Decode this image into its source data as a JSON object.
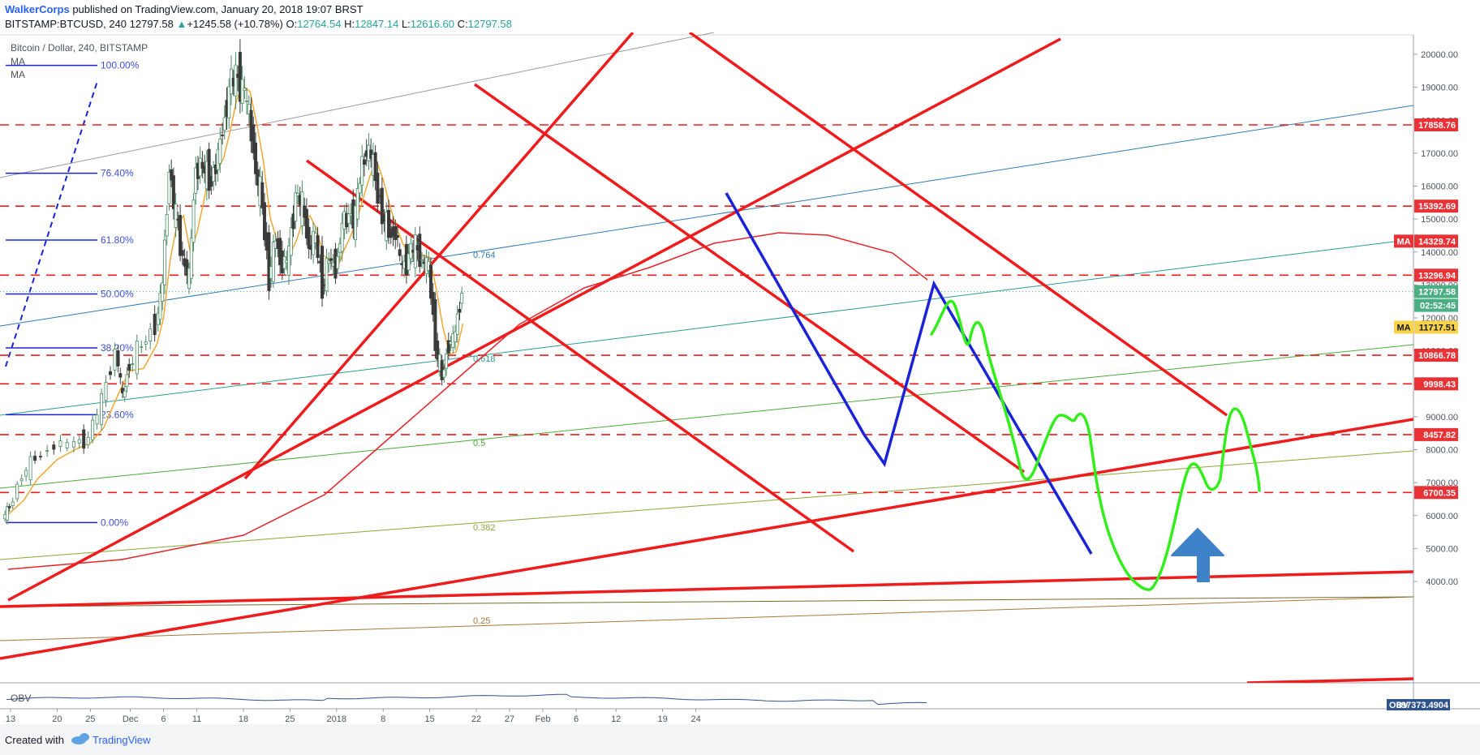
{
  "header": {
    "author": "WalkerCorps",
    "published": " published on TradingView.com, January 20, 2018 19:07 BRST",
    "symbol_line_prefix": "BITSTAMP:BTCUSD, 240  12797.58 ",
    "change_arrow": "▲",
    "change": "+1245.58 (+10.78%)",
    "o_label": " O:",
    "o_value": "12764.54",
    "h_label": " H:",
    "h_value": "12847.14",
    "l_label": " L:",
    "l_value": "12616.60",
    "c_label": " C:",
    "c_value": "12797.58"
  },
  "legend": {
    "title": "Bitcoin / Dollar, 240, BITSTAMP",
    "ma1": "MA",
    "ma2": "MA",
    "obv": "OBV"
  },
  "footer": {
    "created_with": "Created with",
    "brand": "TradingView"
  },
  "colors": {
    "red_line": "#ee1c1c",
    "blue_line": "#1a24d6",
    "green_line": "#33ee1c",
    "ma_orange": "#f0a830",
    "ma_red": "#e8242a",
    "candle_up": "#4a8c64",
    "candle_down": "#3a3a3a",
    "arrow": "#3d82c8",
    "badge_red": "#e83236",
    "badge_green": "#4caf84",
    "badge_yellow": "#f9d34a",
    "obv_badge": "#30548c"
  },
  "chart_data": {
    "type": "candlestick",
    "symbol": "BITSTAMP:BTCUSD",
    "interval": "240",
    "ylim": [
      3700,
      20700
    ],
    "y_ticks": [
      4000,
      5000,
      6000,
      7000,
      8000,
      9000,
      10000,
      11000,
      12000,
      13000,
      14000,
      15000,
      16000,
      17000,
      18000,
      19000,
      20000
    ],
    "y_tick_labels": [
      "4000.00",
      "5000.00",
      "6000.00",
      "7000.00",
      "8000.00",
      "9000.00",
      "10000.00",
      "11000.00",
      "12000.00",
      "13000.00",
      "14000.00",
      "15000.00",
      "16000.00",
      "17000.00",
      "18000.00",
      "19000.00",
      "20000.00"
    ],
    "x_ticks": [
      "13",
      "20",
      "25",
      "Dec",
      "6",
      "11",
      "18",
      "25",
      "2018",
      "8",
      "15",
      "22",
      "27",
      "Feb",
      "6",
      "12",
      "19",
      "24"
    ],
    "x_tick_dates": [
      "2017-11-13",
      "2017-11-20",
      "2017-11-25",
      "2017-12-01",
      "2017-12-06",
      "2017-12-11",
      "2017-12-18",
      "2017-12-25",
      "2018-01-01",
      "2018-01-08",
      "2018-01-15",
      "2018-01-22",
      "2018-01-27",
      "2018-02-01",
      "2018-02-06",
      "2018-02-12",
      "2018-02-19",
      "2018-02-24"
    ],
    "price_path": [
      [
        "2017-11-12",
        5900
      ],
      [
        "2017-11-13",
        6300
      ],
      [
        "2017-11-15",
        7200
      ],
      [
        "2017-11-17",
        7800
      ],
      [
        "2017-11-20",
        8100
      ],
      [
        "2017-11-23",
        8200
      ],
      [
        "2017-11-25",
        8300
      ],
      [
        "2017-11-27",
        9500
      ],
      [
        "2017-11-29",
        11000
      ],
      [
        "2017-11-30",
        9600
      ],
      [
        "2017-12-01",
        10600
      ],
      [
        "2017-12-03",
        11200
      ],
      [
        "2017-12-05",
        11800
      ],
      [
        "2017-12-06",
        13000
      ],
      [
        "2017-12-07",
        16500
      ],
      [
        "2017-12-08",
        15000
      ],
      [
        "2017-12-09",
        13800
      ],
      [
        "2017-12-10",
        13200
      ],
      [
        "2017-12-11",
        16700
      ],
      [
        "2017-12-12",
        16600
      ],
      [
        "2017-12-13",
        16300
      ],
      [
        "2017-12-14",
        16500
      ],
      [
        "2017-12-15",
        17700
      ],
      [
        "2017-12-16",
        18800
      ],
      [
        "2017-12-17",
        19400
      ],
      [
        "2017-12-18",
        18900
      ],
      [
        "2017-12-19",
        18300
      ],
      [
        "2017-12-20",
        16500
      ],
      [
        "2017-12-21",
        15500
      ],
      [
        "2017-12-22",
        13200
      ],
      [
        "2017-12-23",
        14400
      ],
      [
        "2017-12-24",
        13500
      ],
      [
        "2017-12-25",
        13900
      ],
      [
        "2017-12-26",
        15700
      ],
      [
        "2017-12-27",
        15400
      ],
      [
        "2017-12-28",
        14200
      ],
      [
        "2017-12-29",
        14500
      ],
      [
        "2017-12-30",
        13000
      ],
      [
        "2017-12-31",
        13800
      ],
      [
        "2018-01-01",
        13500
      ],
      [
        "2018-01-02",
        14700
      ],
      [
        "2018-01-03",
        15100
      ],
      [
        "2018-01-04",
        15000
      ],
      [
        "2018-01-05",
        16800
      ],
      [
        "2018-01-06",
        17100
      ],
      [
        "2018-01-07",
        16400
      ],
      [
        "2018-01-08",
        15100
      ],
      [
        "2018-01-09",
        14700
      ],
      [
        "2018-01-10",
        14500
      ],
      [
        "2018-01-11",
        13500
      ],
      [
        "2018-01-12",
        13800
      ],
      [
        "2018-01-13",
        14200
      ],
      [
        "2018-01-14",
        13700
      ],
      [
        "2018-01-15",
        13600
      ],
      [
        "2018-01-16",
        11300
      ],
      [
        "2018-01-17",
        10200
      ],
      [
        "2018-01-18",
        11200
      ],
      [
        "2018-01-19",
        11500
      ],
      [
        "2018-01-20",
        12797
      ]
    ],
    "horizontal_levels": [
      17858.76,
      15392.69,
      13296.94,
      10866.78,
      9998.43,
      8457.82,
      6700.35
    ],
    "horizontal_level_labels": [
      "17858.76",
      "15392.69",
      "13296.94",
      "10866.78",
      "9998.43",
      "8457.82",
      "6700.35"
    ],
    "last_price": {
      "value": 12797.58,
      "label": "12797.58",
      "countdown": "02:52:45"
    },
    "ma_labels": [
      {
        "name": "MA",
        "value": 14329.74,
        "label": "14329.74"
      },
      {
        "name": "MA",
        "value": 11717.51,
        "label": "11717.51"
      }
    ],
    "fibonacci": {
      "levels": [
        "100.00%",
        "76.40%",
        "61.80%",
        "50.00%",
        "38.20%",
        "23.60%",
        "0.00%"
      ],
      "prices": [
        19666,
        16390,
        14364,
        12726,
        11089,
        9063,
        5787
      ]
    },
    "fib_fan_labels": [
      "0.764",
      "0.618",
      "0.5",
      "0.382",
      "0.25"
    ],
    "obv": {
      "label": "OBV",
      "value": "397373.4904"
    }
  }
}
